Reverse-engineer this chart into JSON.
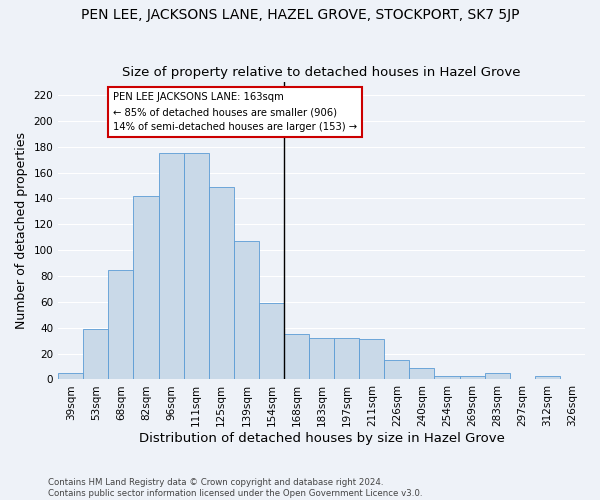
{
  "title": "PEN LEE, JACKSONS LANE, HAZEL GROVE, STOCKPORT, SK7 5JP",
  "subtitle": "Size of property relative to detached houses in Hazel Grove",
  "xlabel": "Distribution of detached houses by size in Hazel Grove",
  "ylabel": "Number of detached properties",
  "categories": [
    "39sqm",
    "53sqm",
    "68sqm",
    "82sqm",
    "96sqm",
    "111sqm",
    "125sqm",
    "139sqm",
    "154sqm",
    "168sqm",
    "183sqm",
    "197sqm",
    "211sqm",
    "226sqm",
    "240sqm",
    "254sqm",
    "269sqm",
    "283sqm",
    "297sqm",
    "312sqm",
    "326sqm"
  ],
  "values": [
    5,
    39,
    85,
    142,
    175,
    175,
    149,
    107,
    59,
    35,
    32,
    32,
    31,
    15,
    9,
    3,
    3,
    5,
    0,
    3,
    0
  ],
  "bar_color": "#c9d9e8",
  "bar_edge_color": "#5b9bd5",
  "annotation_line1": "PEN LEE JACKSONS LANE: 163sqm",
  "annotation_line2": "← 85% of detached houses are smaller (906)",
  "annotation_line3": "14% of semi-detached houses are larger (153) →",
  "annotation_box_color": "#ffffff",
  "annotation_box_edge_color": "#cc0000",
  "ylim": [
    0,
    230
  ],
  "yticks": [
    0,
    20,
    40,
    60,
    80,
    100,
    120,
    140,
    160,
    180,
    200,
    220
  ],
  "footnote1": "Contains HM Land Registry data © Crown copyright and database right 2024.",
  "footnote2": "Contains public sector information licensed under the Open Government Licence v3.0.",
  "bg_color": "#eef2f8",
  "grid_color": "#ffffff",
  "title_fontsize": 10,
  "subtitle_fontsize": 9.5,
  "axis_label_fontsize": 9,
  "tick_fontsize": 7.5,
  "vline_pos": 8.5
}
